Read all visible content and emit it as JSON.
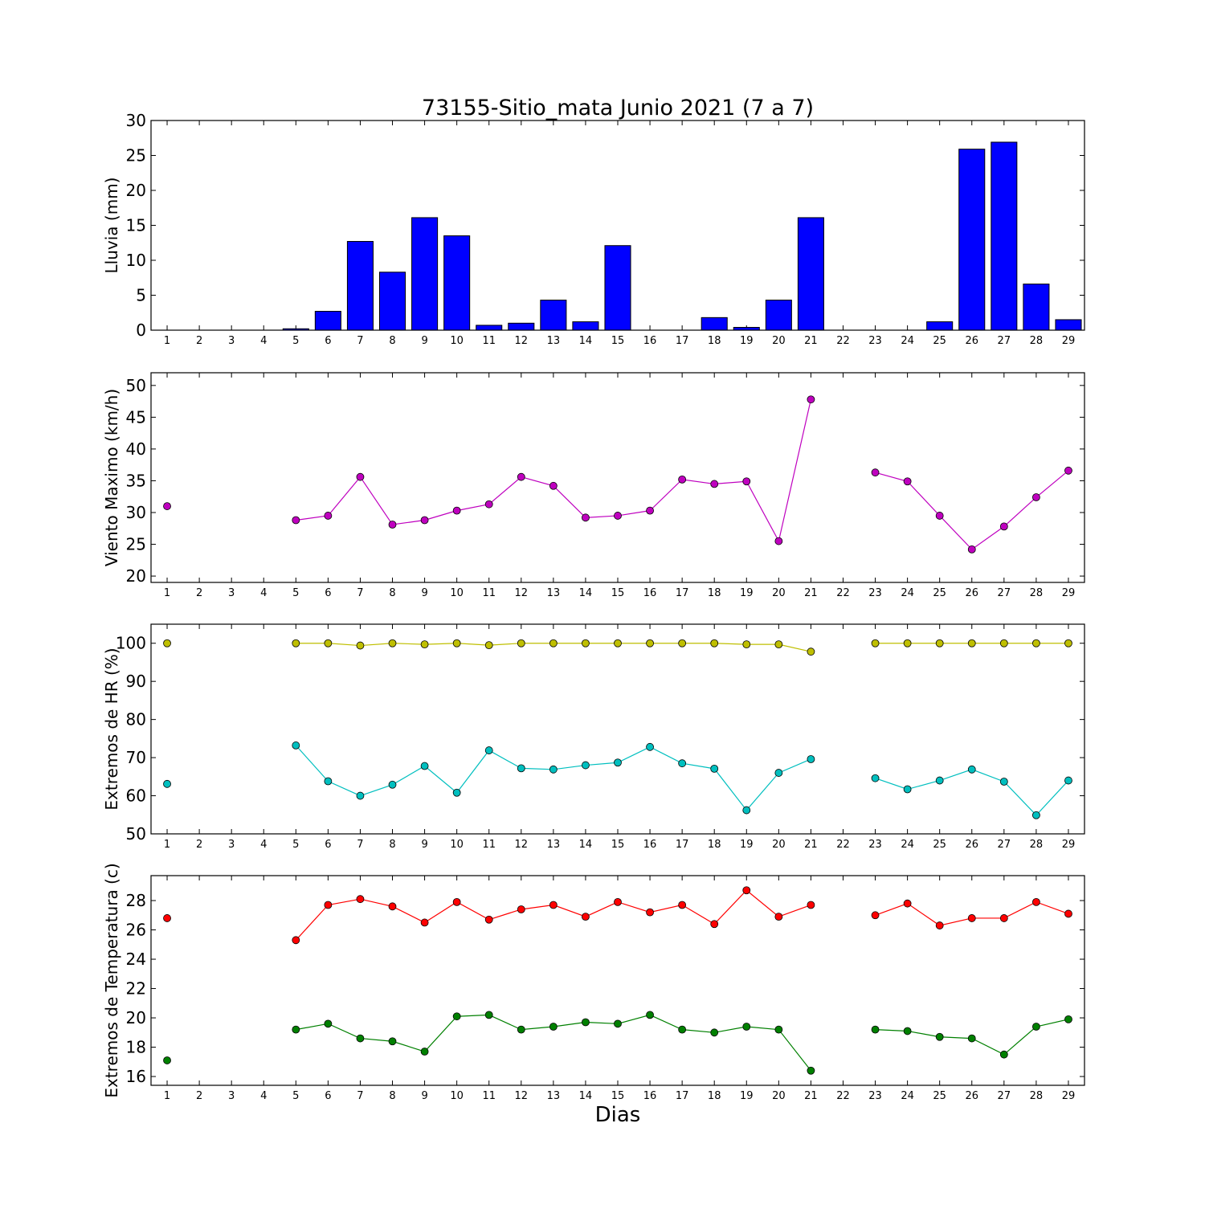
{
  "title": "73155-Sitio_mata Junio 2021  (7 a 7)",
  "xlabel": "Dias",
  "days": [
    1,
    2,
    3,
    4,
    5,
    6,
    7,
    8,
    9,
    10,
    11,
    12,
    13,
    14,
    15,
    16,
    17,
    18,
    19,
    20,
    21,
    22,
    23,
    24,
    25,
    26,
    27,
    28,
    29
  ],
  "chart_data": [
    {
      "type": "bar",
      "ylabel": "Lluvia (mm)",
      "ylim": [
        0,
        30
      ],
      "yticks": [
        0,
        5,
        10,
        15,
        20,
        25,
        30
      ],
      "x": [
        1,
        2,
        3,
        4,
        5,
        6,
        7,
        8,
        9,
        10,
        11,
        12,
        13,
        14,
        15,
        16,
        17,
        18,
        19,
        20,
        21,
        22,
        23,
        24,
        25,
        26,
        27,
        28,
        29
      ],
      "series": [
        {
          "color": "#0000ff",
          "values": [
            0,
            0,
            0,
            0,
            0.2,
            2.7,
            12.7,
            8.3,
            16.1,
            13.5,
            0.7,
            1.0,
            4.3,
            1.2,
            12.1,
            0,
            0,
            1.8,
            0.4,
            4.3,
            16.1,
            0,
            0,
            0,
            1.2,
            25.9,
            26.9,
            6.6,
            1.5
          ]
        }
      ]
    },
    {
      "type": "line",
      "ylabel": "Viento Maximo (km/h)",
      "ylim": [
        19,
        52
      ],
      "yticks": [
        20,
        25,
        30,
        35,
        40,
        45,
        50
      ],
      "x": [
        1,
        2,
        3,
        4,
        5,
        6,
        7,
        8,
        9,
        10,
        11,
        12,
        13,
        14,
        15,
        16,
        17,
        18,
        19,
        20,
        21,
        22,
        23,
        24,
        25,
        26,
        27,
        28,
        29
      ],
      "series": [
        {
          "color": "#bf00bf",
          "values": [
            31.0,
            null,
            null,
            null,
            28.8,
            29.5,
            35.6,
            28.1,
            28.8,
            30.3,
            31.3,
            35.6,
            34.2,
            29.2,
            29.5,
            30.3,
            35.2,
            34.5,
            34.9,
            25.5,
            47.8,
            null,
            36.3,
            34.9,
            29.5,
            24.2,
            27.8,
            32.4,
            36.6
          ]
        }
      ]
    },
    {
      "type": "line",
      "ylabel": "Extremos de HR (%)",
      "ylim": [
        50,
        105
      ],
      "yticks": [
        50,
        60,
        70,
        80,
        90,
        100
      ],
      "x": [
        1,
        2,
        3,
        4,
        5,
        6,
        7,
        8,
        9,
        10,
        11,
        12,
        13,
        14,
        15,
        16,
        17,
        18,
        19,
        20,
        21,
        22,
        23,
        24,
        25,
        26,
        27,
        28,
        29
      ],
      "series": [
        {
          "color": "#bfbf00",
          "values": [
            100,
            null,
            null,
            null,
            100,
            100,
            99.4,
            100,
            99.7,
            100,
            99.5,
            100,
            100,
            100,
            100,
            100,
            100,
            100,
            99.7,
            99.7,
            97.8,
            null,
            100,
            100,
            100,
            100,
            100,
            100,
            100
          ]
        },
        {
          "color": "#00bfbf",
          "values": [
            63.1,
            null,
            null,
            null,
            73.2,
            63.8,
            60.0,
            62.9,
            67.8,
            60.8,
            71.9,
            67.2,
            66.9,
            68.0,
            68.7,
            72.8,
            68.5,
            67.1,
            56.2,
            66.0,
            69.6,
            null,
            64.6,
            61.7,
            64.0,
            66.9,
            63.7,
            54.9,
            64.0
          ]
        }
      ]
    },
    {
      "type": "line",
      "ylabel": "Extremos de Temperatura (c)",
      "ylim": [
        15.4,
        29.7
      ],
      "yticks": [
        16,
        18,
        20,
        22,
        24,
        26,
        28
      ],
      "x": [
        1,
        2,
        3,
        4,
        5,
        6,
        7,
        8,
        9,
        10,
        11,
        12,
        13,
        14,
        15,
        16,
        17,
        18,
        19,
        20,
        21,
        22,
        23,
        24,
        25,
        26,
        27,
        28,
        29
      ],
      "series": [
        {
          "color": "#ff0000",
          "values": [
            26.8,
            null,
            null,
            null,
            25.3,
            27.7,
            28.1,
            27.6,
            26.5,
            27.9,
            26.7,
            27.4,
            27.7,
            26.9,
            27.9,
            27.2,
            27.7,
            26.4,
            28.7,
            26.9,
            27.7,
            null,
            27.0,
            27.8,
            26.3,
            26.8,
            26.8,
            27.9,
            27.1
          ]
        },
        {
          "color": "#008000",
          "values": [
            17.1,
            null,
            null,
            null,
            19.2,
            19.6,
            18.6,
            18.4,
            17.7,
            20.1,
            20.2,
            19.2,
            19.4,
            19.7,
            19.6,
            20.2,
            19.2,
            19.0,
            19.4,
            19.2,
            16.4,
            null,
            19.2,
            19.1,
            18.7,
            18.6,
            17.5,
            19.4,
            19.9
          ]
        }
      ]
    }
  ]
}
